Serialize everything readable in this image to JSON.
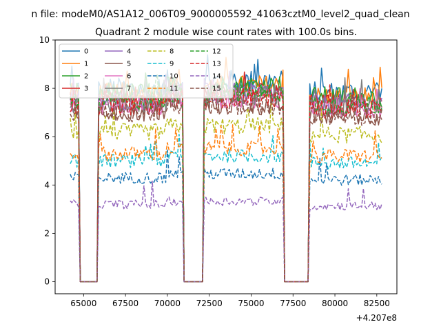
{
  "header": {
    "suptitle": "n file: modeM0/AS1A12_006T09_9000005592_41063cztM0_level2_quad_clean",
    "title": "Quadrant 2 module wise count rates with 100.0s bins."
  },
  "chart_data": {
    "type": "line",
    "title": "Quadrant 2 module wise count rates with 100.0s bins.",
    "xlabel": "",
    "ylabel": "",
    "x_offset_label": "+4.207e8",
    "xlim": [
      63300,
      83700
    ],
    "ylim": [
      -0.5,
      10
    ],
    "xticks": [
      65000,
      67500,
      70000,
      72500,
      75000,
      77500,
      80000,
      82500
    ],
    "xtick_labels": [
      "65000",
      "67500",
      "70000",
      "72500",
      "75000",
      "77500",
      "80000",
      "82500"
    ],
    "yticks": [
      0,
      2,
      4,
      6,
      8,
      10
    ],
    "ytick_labels": [
      "0",
      "2",
      "4",
      "6",
      "8",
      "10"
    ],
    "bin_seconds": 100,
    "x_start": 64200,
    "n_points": 187,
    "gaps": [
      [
        64800,
        65800
      ],
      [
        71000,
        72100
      ],
      [
        77000,
        78400
      ]
    ],
    "legend_location": "top-left",
    "legend_columns": 4,
    "series": [
      {
        "name": "0",
        "color": "#1f77b4",
        "dash": "solid",
        "level": 8.0
      },
      {
        "name": "1",
        "color": "#ff7f0e",
        "dash": "solid",
        "level": 7.8
      },
      {
        "name": "2",
        "color": "#2ca02c",
        "dash": "solid",
        "level": 7.8
      },
      {
        "name": "3",
        "color": "#d62728",
        "dash": "solid",
        "level": 7.5
      },
      {
        "name": "4",
        "color": "#9467bd",
        "dash": "solid",
        "level": 7.5
      },
      {
        "name": "5",
        "color": "#8c564b",
        "dash": "solid",
        "level": 7.0
      },
      {
        "name": "6",
        "color": "#e377c2",
        "dash": "solid",
        "level": 7.3
      },
      {
        "name": "7",
        "color": "#7f7f7f",
        "dash": "solid",
        "level": 7.4
      },
      {
        "name": "8",
        "color": "#bcbd22",
        "dash": "dashed",
        "level": 6.2
      },
      {
        "name": "9",
        "color": "#17becf",
        "dash": "dashed",
        "level": 5.0
      },
      {
        "name": "10",
        "color": "#1f77b4",
        "dash": "dashed",
        "level": 4.3
      },
      {
        "name": "11",
        "color": "#ff7f0e",
        "dash": "dashed",
        "level": 5.3
      },
      {
        "name": "12",
        "color": "#2ca02c",
        "dash": "dashed",
        "level": 7.5
      },
      {
        "name": "13",
        "color": "#d62728",
        "dash": "dashed",
        "level": 7.3
      },
      {
        "name": "14",
        "color": "#9467bd",
        "dash": "dashed",
        "level": 3.2
      },
      {
        "name": "15",
        "color": "#8c564b",
        "dash": "dashed",
        "level": 7.0
      }
    ]
  }
}
